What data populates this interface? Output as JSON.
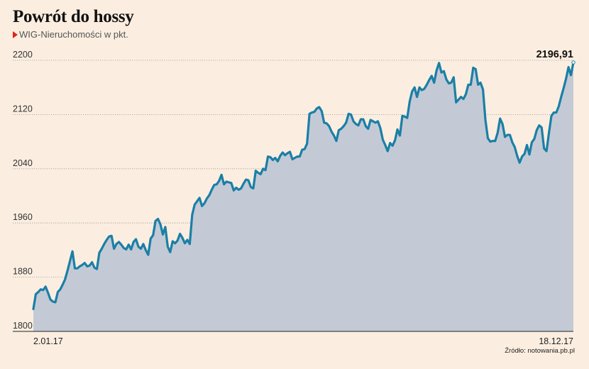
{
  "title": "Powrót do hossy",
  "subtitle": "WIG-Nieruchomości w pkt.",
  "source": "Źródło: notowania.pb.pl",
  "colors": {
    "line": "#1b7fa6",
    "area": "#c3cad6",
    "background": "#fbeee0",
    "marker": "#e2231a"
  },
  "chart_data": {
    "type": "area",
    "title": "Powrót do hossy",
    "subtitle": "WIG-Nieruchomości w pkt.",
    "xlabel": "",
    "ylabel": "",
    "ylim": [
      1800,
      2200
    ],
    "yticks": [
      1800,
      1880,
      1960,
      2040,
      2120,
      2200
    ],
    "ytick_labels": [
      "1800",
      "1880",
      "1960",
      "2040",
      "2120",
      "2200"
    ],
    "x_start_label": "2.01.17",
    "x_end_label": "18.12.17",
    "last_value_label": "2196,91",
    "grid": true,
    "values": [
      1833,
      1855,
      1858,
      1862,
      1861,
      1866,
      1857,
      1847,
      1844,
      1843,
      1858,
      1862,
      1869,
      1877,
      1890,
      1904,
      1918,
      1893,
      1893,
      1896,
      1898,
      1901,
      1896,
      1897,
      1902,
      1894,
      1892,
      1916,
      1922,
      1929,
      1935,
      1940,
      1941,
      1922,
      1929,
      1932,
      1928,
      1923,
      1921,
      1928,
      1921,
      1932,
      1936,
      1925,
      1922,
      1929,
      1920,
      1913,
      1937,
      1942,
      1963,
      1966,
      1958,
      1943,
      1954,
      1925,
      1917,
      1933,
      1930,
      1934,
      1944,
      1938,
      1930,
      1935,
      1929,
      1972,
      1987,
      1992,
      1997,
      1985,
      1989,
      1996,
      2001,
      2009,
      2016,
      2017,
      2022,
      2031,
      2017,
      2021,
      2020,
      2019,
      2008,
      2012,
      2009,
      2011,
      2018,
      2024,
      2023,
      2013,
      2011,
      2037,
      2034,
      2032,
      2040,
      2038,
      2058,
      2057,
      2053,
      2056,
      2051,
      2059,
      2064,
      2060,
      2063,
      2065,
      2054,
      2056,
      2058,
      2058,
      2068,
      2069,
      2077,
      2121,
      2123,
      2124,
      2129,
      2131,
      2125,
      2108,
      2107,
      2103,
      2095,
      2089,
      2081,
      2097,
      2099,
      2103,
      2108,
      2121,
      2120,
      2110,
      2106,
      2104,
      2113,
      2113,
      2103,
      2099,
      2112,
      2110,
      2108,
      2110,
      2100,
      2083,
      2075,
      2066,
      2078,
      2074,
      2082,
      2098,
      2089,
      2118,
      2117,
      2115,
      2139,
      2154,
      2160,
      2146,
      2160,
      2156,
      2158,
      2164,
      2171,
      2177,
      2167,
      2185,
      2196,
      2182,
      2184,
      2172,
      2166,
      2167,
      2175,
      2138,
      2142,
      2146,
      2143,
      2150,
      2164,
      2164,
      2189,
      2187,
      2164,
      2167,
      2157,
      2112,
      2085,
      2080,
      2081,
      2081,
      2093,
      2114,
      2106,
      2087,
      2090,
      2090,
      2079,
      2072,
      2059,
      2049,
      2058,
      2062,
      2075,
      2061,
      2079,
      2084,
      2097,
      2104,
      2101,
      2070,
      2066,
      2093,
      2118,
      2123,
      2123,
      2132,
      2146,
      2159,
      2173,
      2190,
      2178,
      2196.91
    ]
  }
}
